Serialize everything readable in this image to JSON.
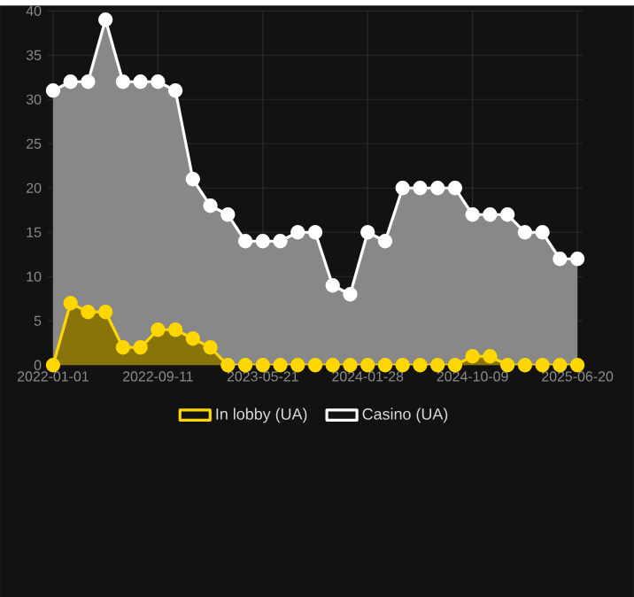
{
  "chart_data": {
    "type": "area",
    "categories": [
      "2022-01-01",
      null,
      null,
      null,
      null,
      null,
      "2022-09-11",
      null,
      null,
      null,
      null,
      null,
      "2023-05-21",
      null,
      null,
      null,
      null,
      null,
      "2024-01-28",
      null,
      null,
      null,
      null,
      null,
      "2024-10-09",
      null,
      null,
      null,
      null,
      null,
      "2025-06-20"
    ],
    "series": [
      {
        "name": "In lobby (UA)",
        "color": "#ffd700",
        "values": [
          0,
          7,
          6,
          6,
          2,
          2,
          4,
          4,
          3,
          2,
          0,
          0,
          0,
          0,
          0,
          0,
          0,
          0,
          0,
          0,
          0,
          0,
          0,
          0,
          1,
          1,
          0,
          0,
          0,
          0,
          0
        ]
      },
      {
        "name": "Casino (UA)",
        "color": "#ffffff",
        "values": [
          31,
          32,
          32,
          39,
          32,
          32,
          32,
          31,
          21,
          18,
          17,
          14,
          14,
          14,
          15,
          15,
          9,
          8,
          15,
          14,
          20,
          20,
          20,
          20,
          17,
          17,
          17,
          15,
          15,
          12,
          12
        ]
      }
    ],
    "ylim": [
      0,
      40
    ],
    "yticks": [
      0,
      5,
      10,
      15,
      20,
      25,
      30,
      35,
      40
    ],
    "grid": true,
    "legend": "bottom",
    "marker": "circle",
    "line_style": "solid"
  }
}
